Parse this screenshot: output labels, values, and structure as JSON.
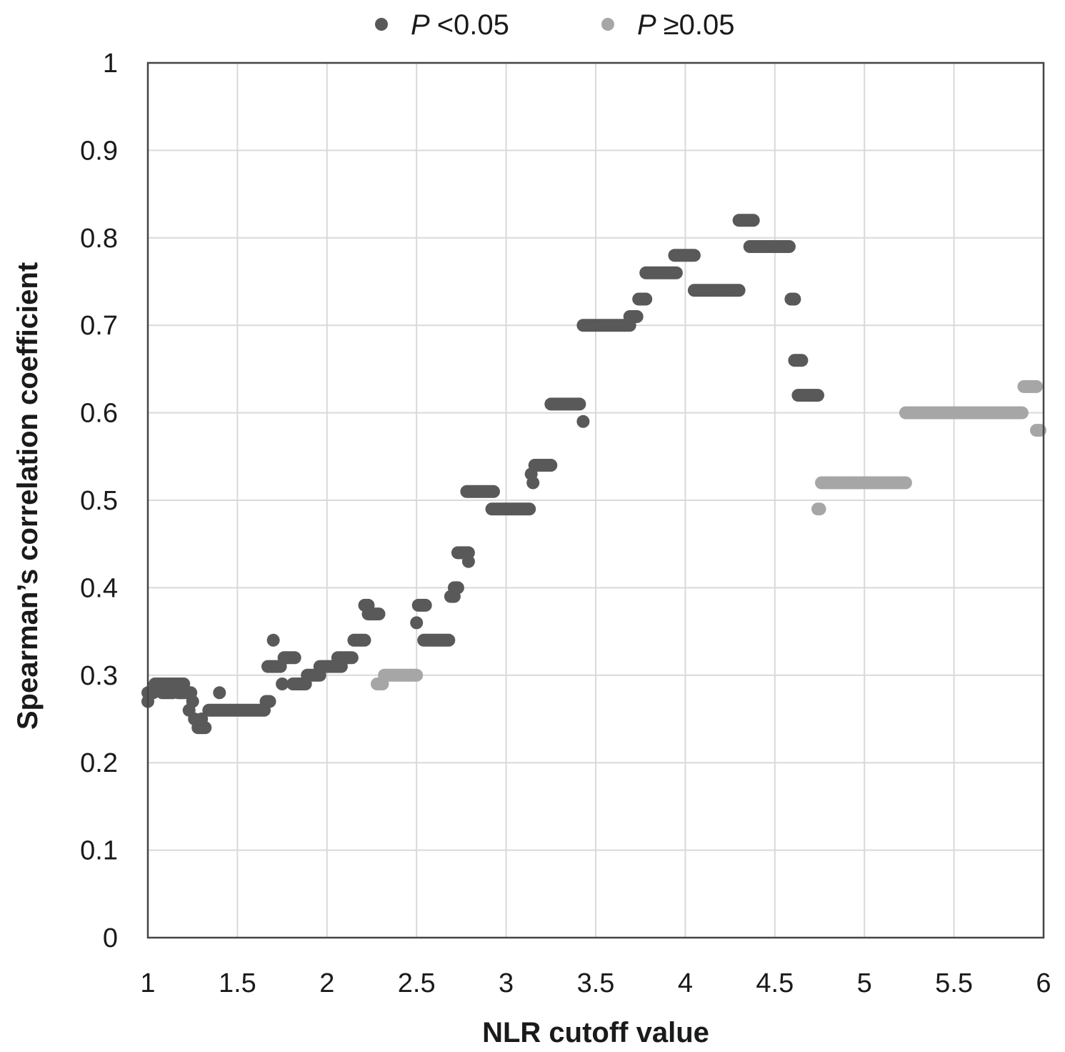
{
  "chart_data": {
    "type": "scatter",
    "title": "",
    "xlabel": "NLR cutoff value",
    "ylabel": "Spearman’s correlation coefficient",
    "xlim": [
      1,
      6
    ],
    "ylim": [
      0,
      1
    ],
    "x_ticks": [
      "1",
      "1.5",
      "2",
      "2.5",
      "3",
      "3.5",
      "4",
      "4.5",
      "5",
      "5.5",
      "6"
    ],
    "y_ticks": [
      "0",
      "0.1",
      "0.2",
      "0.3",
      "0.4",
      "0.5",
      "0.6",
      "0.7",
      "0.8",
      "0.9",
      "1"
    ],
    "grid": true,
    "legend_placement": "top-center",
    "legend": [
      {
        "symbol": "P",
        "text": "<0.05",
        "color": "#595959"
      },
      {
        "symbol": "P",
        "text": "≥0.05",
        "color": "#a6a6a6"
      }
    ],
    "segments": [
      {
        "x0": 1.0,
        "x1": 1.0,
        "y": 0.27,
        "sig": true
      },
      {
        "x0": 1.0,
        "x1": 1.03,
        "y": 0.28,
        "sig": true
      },
      {
        "x0": 1.04,
        "x1": 1.2,
        "y": 0.29,
        "sig": true
      },
      {
        "x0": 1.08,
        "x1": 1.14,
        "y": 0.28,
        "sig": true
      },
      {
        "x0": 1.17,
        "x1": 1.24,
        "y": 0.28,
        "sig": true
      },
      {
        "x0": 1.23,
        "x1": 1.23,
        "y": 0.26,
        "sig": true
      },
      {
        "x0": 1.25,
        "x1": 1.25,
        "y": 0.27,
        "sig": true
      },
      {
        "x0": 1.26,
        "x1": 1.26,
        "y": 0.25,
        "sig": true
      },
      {
        "x0": 1.28,
        "x1": 1.32,
        "y": 0.24,
        "sig": true
      },
      {
        "x0": 1.3,
        "x1": 1.3,
        "y": 0.25,
        "sig": true
      },
      {
        "x0": 1.34,
        "x1": 1.65,
        "y": 0.26,
        "sig": true
      },
      {
        "x0": 1.4,
        "x1": 1.4,
        "y": 0.28,
        "sig": true
      },
      {
        "x0": 1.66,
        "x1": 1.68,
        "y": 0.27,
        "sig": true
      },
      {
        "x0": 1.67,
        "x1": 1.74,
        "y": 0.31,
        "sig": true
      },
      {
        "x0": 1.7,
        "x1": 1.7,
        "y": 0.34,
        "sig": true
      },
      {
        "x0": 1.76,
        "x1": 1.82,
        "y": 0.32,
        "sig": true
      },
      {
        "x0": 1.75,
        "x1": 1.75,
        "y": 0.29,
        "sig": true
      },
      {
        "x0": 1.81,
        "x1": 1.88,
        "y": 0.29,
        "sig": true
      },
      {
        "x0": 1.89,
        "x1": 1.96,
        "y": 0.3,
        "sig": true
      },
      {
        "x0": 1.96,
        "x1": 2.08,
        "y": 0.31,
        "sig": true
      },
      {
        "x0": 2.06,
        "x1": 2.14,
        "y": 0.32,
        "sig": true
      },
      {
        "x0": 2.15,
        "x1": 2.21,
        "y": 0.34,
        "sig": true
      },
      {
        "x0": 2.21,
        "x1": 2.23,
        "y": 0.38,
        "sig": true
      },
      {
        "x0": 2.23,
        "x1": 2.29,
        "y": 0.37,
        "sig": true
      },
      {
        "x0": 2.28,
        "x1": 2.31,
        "y": 0.29,
        "sig": false
      },
      {
        "x0": 2.32,
        "x1": 2.5,
        "y": 0.3,
        "sig": false
      },
      {
        "x0": 2.5,
        "x1": 2.5,
        "y": 0.36,
        "sig": true
      },
      {
        "x0": 2.51,
        "x1": 2.55,
        "y": 0.38,
        "sig": true
      },
      {
        "x0": 2.54,
        "x1": 2.68,
        "y": 0.34,
        "sig": true
      },
      {
        "x0": 2.69,
        "x1": 2.71,
        "y": 0.39,
        "sig": true
      },
      {
        "x0": 2.71,
        "x1": 2.73,
        "y": 0.4,
        "sig": true
      },
      {
        "x0": 2.73,
        "x1": 2.79,
        "y": 0.44,
        "sig": true
      },
      {
        "x0": 2.79,
        "x1": 2.79,
        "y": 0.43,
        "sig": true
      },
      {
        "x0": 2.78,
        "x1": 2.93,
        "y": 0.51,
        "sig": true
      },
      {
        "x0": 2.92,
        "x1": 3.13,
        "y": 0.49,
        "sig": true
      },
      {
        "x0": 3.14,
        "x1": 3.14,
        "y": 0.53,
        "sig": true
      },
      {
        "x0": 3.15,
        "x1": 3.15,
        "y": 0.52,
        "sig": true
      },
      {
        "x0": 3.16,
        "x1": 3.25,
        "y": 0.54,
        "sig": true
      },
      {
        "x0": 3.25,
        "x1": 3.41,
        "y": 0.61,
        "sig": true
      },
      {
        "x0": 3.43,
        "x1": 3.43,
        "y": 0.59,
        "sig": true
      },
      {
        "x0": 3.43,
        "x1": 3.69,
        "y": 0.7,
        "sig": true
      },
      {
        "x0": 3.69,
        "x1": 3.73,
        "y": 0.71,
        "sig": true
      },
      {
        "x0": 3.74,
        "x1": 3.78,
        "y": 0.73,
        "sig": true
      },
      {
        "x0": 3.78,
        "x1": 3.95,
        "y": 0.76,
        "sig": true
      },
      {
        "x0": 3.94,
        "x1": 4.05,
        "y": 0.78,
        "sig": true
      },
      {
        "x0": 4.05,
        "x1": 4.3,
        "y": 0.74,
        "sig": true
      },
      {
        "x0": 4.3,
        "x1": 4.38,
        "y": 0.82,
        "sig": true
      },
      {
        "x0": 4.36,
        "x1": 4.58,
        "y": 0.79,
        "sig": true
      },
      {
        "x0": 4.59,
        "x1": 4.61,
        "y": 0.73,
        "sig": true
      },
      {
        "x0": 4.61,
        "x1": 4.65,
        "y": 0.66,
        "sig": true
      },
      {
        "x0": 4.63,
        "x1": 4.74,
        "y": 0.62,
        "sig": true
      },
      {
        "x0": 4.74,
        "x1": 4.75,
        "y": 0.49,
        "sig": false
      },
      {
        "x0": 4.76,
        "x1": 5.23,
        "y": 0.52,
        "sig": false
      },
      {
        "x0": 5.23,
        "x1": 5.88,
        "y": 0.6,
        "sig": false
      },
      {
        "x0": 5.89,
        "x1": 5.96,
        "y": 0.63,
        "sig": false
      },
      {
        "x0": 5.96,
        "x1": 5.98,
        "y": 0.58,
        "sig": false
      }
    ]
  }
}
